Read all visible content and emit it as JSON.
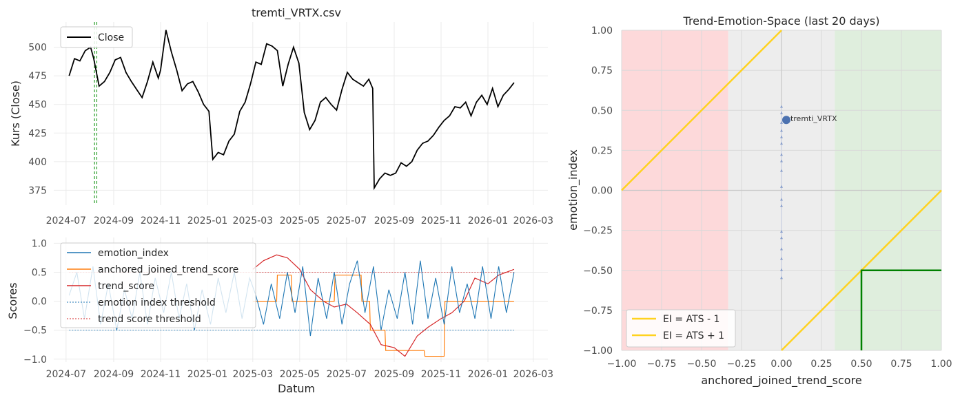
{
  "chart_data": [
    {
      "type": "line",
      "title": "tremti_VRTX.csv",
      "xlabel": "",
      "ylabel": "Kurs (Close)",
      "x_ticks": [
        "2024-07",
        "2024-09",
        "2024-11",
        "2025-01",
        "2025-03",
        "2025-05",
        "2025-07",
        "2025-09",
        "2025-11",
        "2026-01",
        "2026-03"
      ],
      "y_ticks": [
        "375",
        "400",
        "425",
        "450",
        "475",
        "500"
      ],
      "ylim": [
        362,
        522
      ],
      "legend": "top-left",
      "series": [
        {
          "name": "Close",
          "color": "#000000",
          "points": [
            [
              "2024-07-05",
              475
            ],
            [
              "2024-07-12",
              490
            ],
            [
              "2024-07-19",
              488
            ],
            [
              "2024-07-26",
              497
            ],
            [
              "2024-08-02",
              500
            ],
            [
              "2024-08-06",
              490
            ],
            [
              "2024-08-13",
              466
            ],
            [
              "2024-08-20",
              470
            ],
            [
              "2024-08-27",
              478
            ],
            [
              "2024-09-03",
              489
            ],
            [
              "2024-09-10",
              491
            ],
            [
              "2024-09-17",
              478
            ],
            [
              "2024-09-24",
              470
            ],
            [
              "2024-10-01",
              463
            ],
            [
              "2024-10-08",
              456
            ],
            [
              "2024-10-15",
              470
            ],
            [
              "2024-10-22",
              487
            ],
            [
              "2024-10-29",
              473
            ],
            [
              "2024-11-01",
              480
            ],
            [
              "2024-11-08",
              515
            ],
            [
              "2024-11-15",
              496
            ],
            [
              "2024-11-22",
              480
            ],
            [
              "2024-11-29",
              462
            ],
            [
              "2024-12-06",
              468
            ],
            [
              "2024-12-13",
              470
            ],
            [
              "2024-12-20",
              461
            ],
            [
              "2024-12-27",
              450
            ],
            [
              "2025-01-03",
              444
            ],
            [
              "2025-01-08",
              402
            ],
            [
              "2025-01-15",
              408
            ],
            [
              "2025-01-22",
              406
            ],
            [
              "2025-01-29",
              418
            ],
            [
              "2025-02-05",
              424
            ],
            [
              "2025-02-12",
              444
            ],
            [
              "2025-02-19",
              452
            ],
            [
              "2025-02-26",
              468
            ],
            [
              "2025-03-05",
              487
            ],
            [
              "2025-03-12",
              485
            ],
            [
              "2025-03-19",
              503
            ],
            [
              "2025-03-26",
              501
            ],
            [
              "2025-04-02",
              497
            ],
            [
              "2025-04-09",
              466
            ],
            [
              "2025-04-16",
              485
            ],
            [
              "2025-04-23",
              500
            ],
            [
              "2025-04-30",
              486
            ],
            [
              "2025-05-07",
              443
            ],
            [
              "2025-05-14",
              428
            ],
            [
              "2025-05-21",
              436
            ],
            [
              "2025-05-28",
              452
            ],
            [
              "2025-06-04",
              456
            ],
            [
              "2025-06-11",
              450
            ],
            [
              "2025-06-18",
              445
            ],
            [
              "2025-06-25",
              463
            ],
            [
              "2025-07-02",
              478
            ],
            [
              "2025-07-09",
              472
            ],
            [
              "2025-07-16",
              469
            ],
            [
              "2025-07-23",
              466
            ],
            [
              "2025-07-30",
              472
            ],
            [
              "2025-08-04",
              464
            ],
            [
              "2025-08-06",
              377
            ],
            [
              "2025-08-13",
              385
            ],
            [
              "2025-08-20",
              390
            ],
            [
              "2025-08-27",
              388
            ],
            [
              "2025-09-03",
              390
            ],
            [
              "2025-09-10",
              399
            ],
            [
              "2025-09-17",
              396
            ],
            [
              "2025-09-24",
              400
            ],
            [
              "2025-10-01",
              410
            ],
            [
              "2025-10-08",
              416
            ],
            [
              "2025-10-15",
              418
            ],
            [
              "2025-10-22",
              423
            ],
            [
              "2025-10-29",
              430
            ],
            [
              "2025-11-05",
              436
            ],
            [
              "2025-11-12",
              440
            ],
            [
              "2025-11-19",
              448
            ],
            [
              "2025-11-26",
              447
            ],
            [
              "2025-12-03",
              452
            ],
            [
              "2025-12-10",
              440
            ],
            [
              "2025-12-17",
              452
            ],
            [
              "2025-12-24",
              458
            ],
            [
              "2025-12-31",
              450
            ],
            [
              "2026-01-07",
              464
            ],
            [
              "2026-01-14",
              448
            ],
            [
              "2026-01-21",
              458
            ],
            [
              "2026-01-28",
              463
            ],
            [
              "2026-02-04",
              469
            ]
          ]
        }
      ],
      "vlines": {
        "dates": [
          "2024-08-07",
          "2024-08-10"
        ],
        "color": "#2ca02c",
        "style": "dashed"
      }
    },
    {
      "type": "line",
      "title": "",
      "xlabel": "Datum",
      "ylabel": "Scores",
      "x_ticks": [
        "2024-07",
        "2024-09",
        "2024-11",
        "2025-01",
        "2025-03",
        "2025-05",
        "2025-07",
        "2025-09",
        "2025-11",
        "2026-01",
        "2026-03"
      ],
      "y_ticks": [
        "−1.0",
        "−0.5",
        "0.0",
        "0.5",
        "1.0"
      ],
      "ylim": [
        -1.05,
        1.1
      ],
      "legend": "top-left",
      "legend_entries": [
        "emotion_index",
        "anchored_joined_trend_score",
        "trend_score",
        "emotion index threshold",
        "trend score threshold"
      ],
      "series": [
        {
          "name": "emotion_index",
          "color": "#1f77b4",
          "points": [
            [
              "2024-07-05",
              0.1
            ],
            [
              "2024-07-15",
              0.5
            ],
            [
              "2024-07-25",
              -0.3
            ],
            [
              "2024-08-05",
              0.6
            ],
            [
              "2024-08-15",
              -0.4
            ],
            [
              "2024-08-25",
              0.3
            ],
            [
              "2024-09-05",
              -0.5
            ],
            [
              "2024-09-15",
              0.2
            ],
            [
              "2024-09-25",
              -0.3
            ],
            [
              "2024-10-05",
              0.5
            ],
            [
              "2024-10-15",
              -0.4
            ],
            [
              "2024-10-25",
              0.4
            ],
            [
              "2024-11-05",
              -0.2
            ],
            [
              "2024-11-15",
              0.5
            ],
            [
              "2024-11-25",
              -0.3
            ],
            [
              "2024-12-05",
              0.3
            ],
            [
              "2024-12-15",
              -0.5
            ],
            [
              "2024-12-25",
              0.2
            ],
            [
              "2025-01-05",
              -0.4
            ],
            [
              "2025-01-15",
              0.4
            ],
            [
              "2025-01-25",
              -0.2
            ],
            [
              "2025-02-05",
              0.5
            ],
            [
              "2025-02-15",
              -0.3
            ],
            [
              "2025-02-25",
              0.4
            ],
            [
              "2025-03-05",
              0.1
            ],
            [
              "2025-03-15",
              -0.4
            ],
            [
              "2025-03-25",
              0.3
            ],
            [
              "2025-04-05",
              -0.3
            ],
            [
              "2025-04-15",
              0.5
            ],
            [
              "2025-04-25",
              -0.2
            ],
            [
              "2025-05-05",
              0.6
            ],
            [
              "2025-05-15",
              -0.6
            ],
            [
              "2025-05-25",
              0.4
            ],
            [
              "2025-06-05",
              -0.3
            ],
            [
              "2025-06-15",
              0.5
            ],
            [
              "2025-06-25",
              -0.4
            ],
            [
              "2025-07-05",
              0.3
            ],
            [
              "2025-07-15",
              0.7
            ],
            [
              "2025-07-25",
              -0.2
            ],
            [
              "2025-08-05",
              0.6
            ],
            [
              "2025-08-15",
              -0.5
            ],
            [
              "2025-08-25",
              0.2
            ],
            [
              "2025-09-05",
              -0.3
            ],
            [
              "2025-09-15",
              0.5
            ],
            [
              "2025-09-25",
              -0.4
            ],
            [
              "2025-10-05",
              0.7
            ],
            [
              "2025-10-15",
              -0.3
            ],
            [
              "2025-10-25",
              0.4
            ],
            [
              "2025-11-05",
              -0.4
            ],
            [
              "2025-11-15",
              0.6
            ],
            [
              "2025-11-25",
              -0.2
            ],
            [
              "2025-12-05",
              0.3
            ],
            [
              "2025-12-15",
              -0.3
            ],
            [
              "2025-12-25",
              0.6
            ],
            [
              "2026-01-05",
              -0.3
            ],
            [
              "2026-01-15",
              0.6
            ],
            [
              "2026-01-25",
              -0.2
            ],
            [
              "2026-02-04",
              0.5
            ]
          ]
        },
        {
          "name": "anchored_joined_trend_score",
          "color": "#ff7f0e",
          "points": [
            [
              "2025-03-01",
              0.0
            ],
            [
              "2025-04-01",
              0.0
            ],
            [
              "2025-04-02",
              0.45
            ],
            [
              "2025-04-20",
              0.45
            ],
            [
              "2025-04-21",
              0.0
            ],
            [
              "2025-06-15",
              0.0
            ],
            [
              "2025-06-16",
              0.45
            ],
            [
              "2025-07-20",
              0.45
            ],
            [
              "2025-07-21",
              0.0
            ],
            [
              "2025-07-31",
              0.0
            ],
            [
              "2025-08-01",
              -0.5
            ],
            [
              "2025-08-20",
              -0.5
            ],
            [
              "2025-08-21",
              -0.85
            ],
            [
              "2025-10-10",
              -0.85
            ],
            [
              "2025-10-11",
              -0.95
            ],
            [
              "2025-11-05",
              -0.95
            ],
            [
              "2025-11-06",
              0.0
            ],
            [
              "2026-02-04",
              0.0
            ]
          ]
        },
        {
          "name": "trend_score",
          "color": "#d62728",
          "points": [
            [
              "2025-03-01",
              0.55
            ],
            [
              "2025-03-15",
              0.7
            ],
            [
              "2025-04-01",
              0.8
            ],
            [
              "2025-04-15",
              0.75
            ],
            [
              "2025-05-01",
              0.55
            ],
            [
              "2025-05-15",
              0.2
            ],
            [
              "2025-06-01",
              0.0
            ],
            [
              "2025-06-15",
              -0.1
            ],
            [
              "2025-07-01",
              -0.05
            ],
            [
              "2025-07-15",
              -0.2
            ],
            [
              "2025-08-01",
              -0.4
            ],
            [
              "2025-08-15",
              -0.75
            ],
            [
              "2025-09-01",
              -0.8
            ],
            [
              "2025-09-15",
              -0.95
            ],
            [
              "2025-10-01",
              -0.6
            ],
            [
              "2025-10-15",
              -0.45
            ],
            [
              "2025-11-01",
              -0.3
            ],
            [
              "2025-11-15",
              -0.2
            ],
            [
              "2025-12-01",
              0.0
            ],
            [
              "2025-12-15",
              0.4
            ],
            [
              "2026-01-01",
              0.3
            ],
            [
              "2026-01-15",
              0.45
            ],
            [
              "2026-02-04",
              0.55
            ]
          ]
        }
      ],
      "thresholds": [
        {
          "name": "emotion index threshold",
          "value": -0.5,
          "color": "#1f77b4"
        },
        {
          "name": "trend score threshold",
          "value": 0.5,
          "color": "#d62728"
        }
      ]
    },
    {
      "type": "scatter",
      "title": "Trend-Emotion-Space (last 20 days)",
      "xlabel": "anchored_joined_trend_score",
      "ylabel": "emotion_index",
      "xlim": [
        -1.0,
        1.0
      ],
      "ylim": [
        -1.0,
        1.0
      ],
      "x_ticks": [
        "−1.00",
        "−0.75",
        "−0.50",
        "−0.25",
        "0.00",
        "0.25",
        "0.50",
        "0.75",
        "1.00"
      ],
      "y_ticks": [
        "1.00",
        "0.75",
        "0.50",
        "0.25",
        "0.00",
        "−0.25",
        "−0.50",
        "−0.75",
        "−1.00"
      ],
      "regions": [
        {
          "x_from": -1.0,
          "x_to": -0.333,
          "color": "#fdd9da"
        },
        {
          "x_from": -0.333,
          "x_to": 0.333,
          "color": "#ededed"
        },
        {
          "x_from": 0.333,
          "x_to": 1.0,
          "color": "#dfeedd"
        }
      ],
      "lines": [
        {
          "name": "EI = ATS - 1",
          "slope": 1,
          "intercept": -1,
          "color": "#ffd21f"
        },
        {
          "name": "EI = ATS + 1",
          "slope": 1,
          "intercept": 1,
          "color": "#ffd21f"
        }
      ],
      "trail_points": [
        [
          0.0,
          0.52
        ],
        [
          0.0,
          0.48
        ],
        [
          0.0,
          0.42
        ],
        [
          0.0,
          0.37
        ],
        [
          0.0,
          0.33
        ],
        [
          0.0,
          0.29
        ],
        [
          0.0,
          0.22
        ],
        [
          0.0,
          0.18
        ],
        [
          0.0,
          0.12
        ],
        [
          0.0,
          0.02
        ],
        [
          0.0,
          -0.06
        ],
        [
          0.0,
          -0.1
        ],
        [
          0.0,
          -0.26
        ],
        [
          0.0,
          -0.3
        ],
        [
          0.0,
          -0.37
        ],
        [
          0.0,
          -0.43
        ],
        [
          0.0,
          -0.5
        ],
        [
          0.0,
          -0.55
        ]
      ],
      "current_point": {
        "label": "tremti_VRTX",
        "x": 0.03,
        "y": 0.44,
        "color": "#4c72b0"
      },
      "target_box": {
        "x": 0.5,
        "y": -0.5,
        "color": "#008000"
      },
      "legend": "bottom-left"
    }
  ]
}
